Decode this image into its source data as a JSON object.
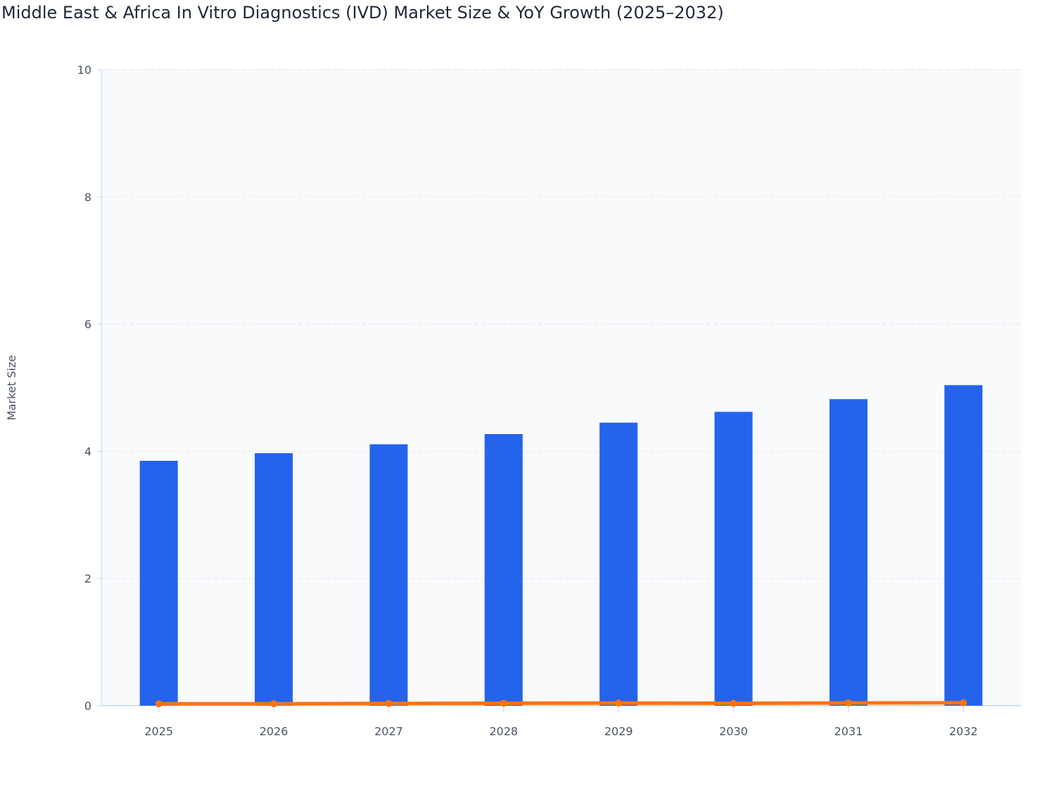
{
  "chart_data": {
    "type": "bar",
    "title": "Middle East & Africa In Vitro Diagnostics (IVD) Market Size & YoY Growth (2025–2032)",
    "xlabel": "",
    "ylabel": "Market Size",
    "ylim": [
      0,
      10
    ],
    "yticks": [
      0,
      2,
      4,
      6,
      8,
      10
    ],
    "grid": true,
    "categories": [
      "2025",
      "2026",
      "2027",
      "2028",
      "2029",
      "2030",
      "2031",
      "2032"
    ],
    "series": [
      {
        "type": "bar",
        "color": "#2563eb",
        "values": [
          3.85,
          3.97,
          4.11,
          4.27,
          4.45,
          4.62,
          4.82,
          5.04
        ]
      },
      {
        "type": "line",
        "color": "#f97316",
        "values": [
          0.03,
          0.031,
          0.035,
          0.039,
          0.042,
          0.038,
          0.043,
          0.046
        ]
      }
    ]
  }
}
